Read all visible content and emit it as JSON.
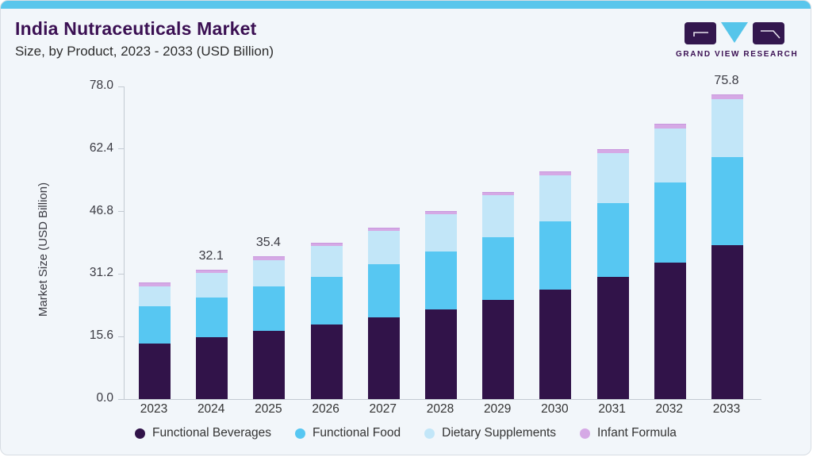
{
  "header": {
    "title": "India Nutraceuticals Market",
    "subtitle": "Size, by Product, 2023 - 2033 (USD Billion)"
  },
  "logo": {
    "text": "GRAND VIEW RESEARCH"
  },
  "colors": {
    "card_background": "#f2f6fa",
    "top_strip": "#5ac6ec",
    "title_purple": "#3b1053",
    "text_dark": "#333333",
    "axis_line": "#c3cad2",
    "logo_purple": "#33174e",
    "logo_blue": "#56c5ea"
  },
  "chart_data": {
    "type": "bar",
    "stacked": true,
    "title": "India Nutraceuticals Market Size, by Product, 2023 - 2033 (USD Billion)",
    "xlabel": "",
    "ylabel": "Market Size (USD Billion)",
    "ylim": [
      0,
      78
    ],
    "yticks": [
      78.0,
      62.4,
      46.8,
      31.2,
      15.6,
      0.0
    ],
    "grid": false,
    "legend_position": "bottom",
    "categories": [
      "2023",
      "2024",
      "2025",
      "2026",
      "2027",
      "2028",
      "2029",
      "2030",
      "2031",
      "2032",
      "2033"
    ],
    "series": [
      {
        "name": "Functional Beverages",
        "color": "#311349",
        "values": [
          13.9,
          15.4,
          17.0,
          18.6,
          20.4,
          22.4,
          24.8,
          27.3,
          30.4,
          34.1,
          38.4
        ]
      },
      {
        "name": "Functional Food",
        "color": "#57c7f2",
        "values": [
          9.3,
          10.0,
          11.1,
          11.9,
          13.2,
          14.5,
          15.6,
          17.0,
          18.6,
          20.0,
          21.9
        ]
      },
      {
        "name": "Dietary Supplements",
        "color": "#c2e6f8",
        "values": [
          5.0,
          6.0,
          6.6,
          7.7,
          8.3,
          9.2,
          10.4,
          11.6,
          12.3,
          13.5,
          14.6
        ]
      },
      {
        "name": "Infant Formula",
        "color": "#d5a9e5",
        "values": [
          0.7,
          0.7,
          0.7,
          0.7,
          0.7,
          0.7,
          0.7,
          0.8,
          0.8,
          0.9,
          0.9
        ]
      }
    ],
    "totals": [
      28.9,
      32.1,
      35.4,
      38.9,
      42.6,
      46.8,
      51.5,
      56.7,
      62.1,
      68.5,
      75.8
    ],
    "total_labels": [
      "",
      "32.1",
      "35.4",
      "",
      "",
      "",
      "",
      "",
      "",
      "",
      "75.8"
    ]
  }
}
